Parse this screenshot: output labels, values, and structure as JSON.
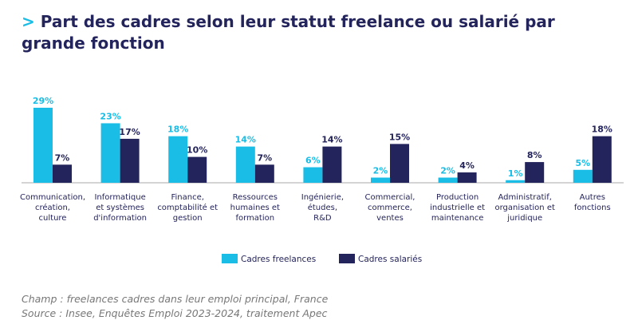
{
  "chart_data": {
    "type": "bar",
    "title_prefix": ">",
    "title": "Part des cadres selon leur statut freelance ou salarié par grande fonction",
    "categories": [
      "Communication,\ncréation,\nculture",
      "Informatique\net systèmes\nd'information",
      "Finance,\ncomptabilité et\ngestion",
      "Ressources\nhumaines et\nformation",
      "Ingénierie,\nétudes,\nR&D",
      "Commercial,\ncommerce,\nventes",
      "Production\nindustrielle et\nmaintenance",
      "Administratif,\norganisation et\njuridique",
      "Autres\nfonctions"
    ],
    "series": [
      {
        "name": "Cadres freelances",
        "color": "#19bde6",
        "values": [
          29,
          23,
          18,
          14,
          6,
          2,
          2,
          1,
          5
        ],
        "value_labels": [
          "29%",
          "23%",
          "18%",
          "14%",
          "6%",
          "2%",
          "2%",
          "1%",
          "5%"
        ]
      },
      {
        "name": "Cadres salariés",
        "color": "#24245c",
        "values": [
          7,
          17,
          10,
          7,
          14,
          15,
          4,
          8,
          18
        ],
        "value_labels": [
          "7%",
          "17%",
          "10%",
          "7%",
          "14%",
          "15%",
          "4%",
          "8%",
          "18%"
        ]
      }
    ],
    "notes": [
      "Champ : freelances cadres dans leur emploi principal, France",
      "Source : Insee, Enquêtes Emploi 2023-2024, traitement Apec"
    ]
  }
}
